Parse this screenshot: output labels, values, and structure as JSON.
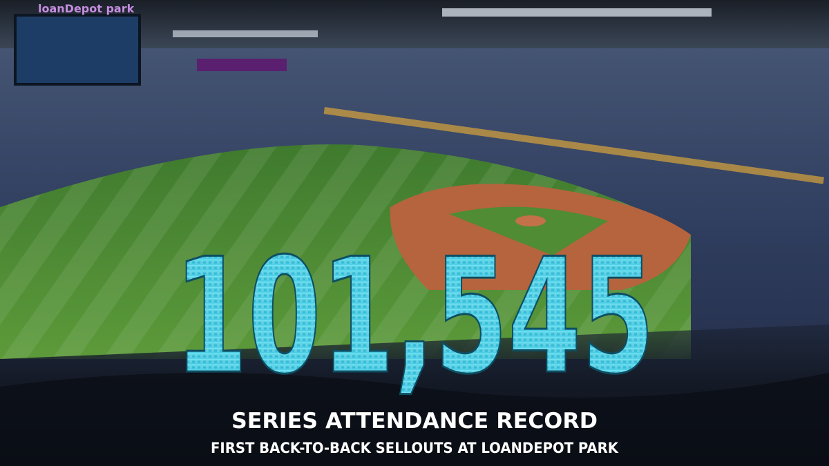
{
  "graphic": {
    "venue_sign": "loanDepot park",
    "headline_number": "101,545",
    "title": "SERIES ATTENDANCE RECORD",
    "subtitle": "FIRST BACK-TO-BACK SELLOUTS AT LOANDEPOT PARK"
  }
}
